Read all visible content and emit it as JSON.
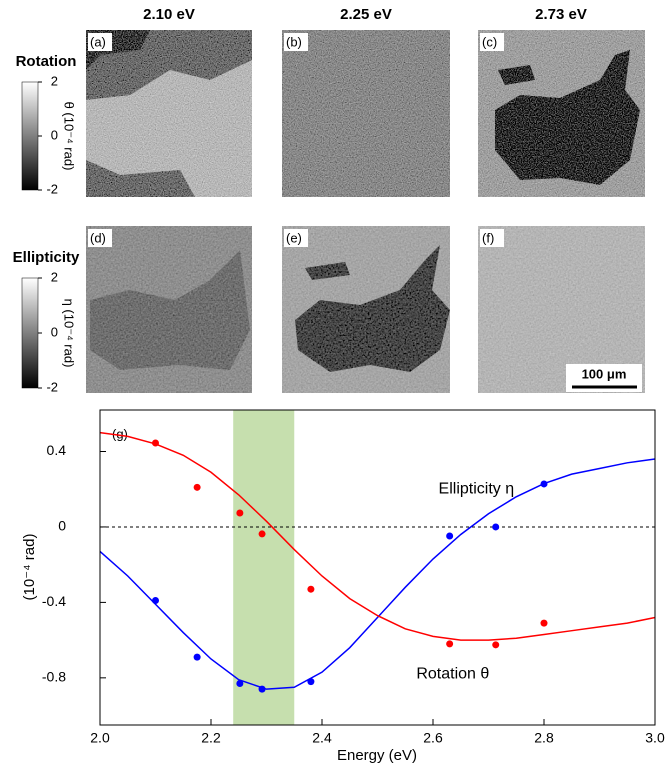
{
  "columns": [
    "2.10 eV",
    "2.25 eV",
    "2.73 eV"
  ],
  "rows": [
    {
      "label": "Rotation",
      "color": "#ff0000",
      "colorbar_label": "θ (10⁻⁴ rad)",
      "colorbar_ticks": [
        2,
        0,
        -2
      ]
    },
    {
      "label": "Ellipticity",
      "color": "#0000ff",
      "colorbar_label": "η (10⁻⁴ rad)",
      "colorbar_ticks": [
        2,
        0,
        -2
      ]
    }
  ],
  "panel_labels": [
    "(a)",
    "(b)",
    "(c)",
    "(d)",
    "(e)",
    "(f)"
  ],
  "scale_bar": "100 μm",
  "chart_data": {
    "type": "line",
    "panel_label": "(g)",
    "x_label": "Energy (eV)",
    "y_label": "(10⁻⁴ rad)",
    "xlim": [
      2.0,
      3.0
    ],
    "ylim": [
      -1.05,
      0.62
    ],
    "xticks": [
      {
        "value": 2.0,
        "label": "2.0"
      },
      2.2,
      2.4,
      2.6,
      2.8,
      {
        "value": 3.0,
        "label": "3.0"
      }
    ],
    "yticks": [
      0.4,
      0,
      -0.4,
      -0.8
    ],
    "band": [
      2.24,
      2.35
    ],
    "band_color": "#c6dfae",
    "reference_line": 0,
    "series": [
      {
        "name": "Ellipticity η",
        "color": "#0000ff",
        "x": [
          2.1,
          2.175,
          2.252,
          2.292,
          2.38,
          2.63,
          2.713,
          2.8
        ],
        "values": [
          -0.39,
          -0.69,
          -0.83,
          -0.86,
          -0.82,
          -0.048,
          0,
          0.228
        ],
        "fit_x": [
          2.0,
          2.05,
          2.1,
          2.15,
          2.2,
          2.25,
          2.3,
          2.35,
          2.4,
          2.45,
          2.5,
          2.55,
          2.6,
          2.65,
          2.7,
          2.75,
          2.8,
          2.85,
          2.9,
          2.95,
          3.0
        ],
        "fit_values": [
          -0.13,
          -0.26,
          -0.41,
          -0.56,
          -0.7,
          -0.81,
          -0.86,
          -0.85,
          -0.77,
          -0.64,
          -0.48,
          -0.32,
          -0.17,
          -0.04,
          0.07,
          0.16,
          0.23,
          0.28,
          0.31,
          0.34,
          0.36
        ]
      },
      {
        "name": "Rotation θ",
        "color": "#ff0000",
        "x": [
          2.1,
          2.175,
          2.252,
          2.292,
          2.38,
          2.63,
          2.713,
          2.8
        ],
        "values": [
          0.445,
          0.21,
          0.074,
          -0.037,
          -0.33,
          -0.62,
          -0.625,
          -0.51
        ],
        "fit_x": [
          2.0,
          2.05,
          2.1,
          2.15,
          2.2,
          2.25,
          2.3,
          2.35,
          2.4,
          2.45,
          2.5,
          2.55,
          2.6,
          2.65,
          2.7,
          2.75,
          2.8,
          2.85,
          2.9,
          2.95,
          3.0
        ],
        "fit_values": [
          0.5,
          0.48,
          0.44,
          0.38,
          0.29,
          0.17,
          0.03,
          -0.12,
          -0.26,
          -0.38,
          -0.47,
          -0.54,
          -0.58,
          -0.6,
          -0.6,
          -0.59,
          -0.57,
          -0.55,
          -0.53,
          -0.51,
          -0.48
        ]
      }
    ]
  }
}
